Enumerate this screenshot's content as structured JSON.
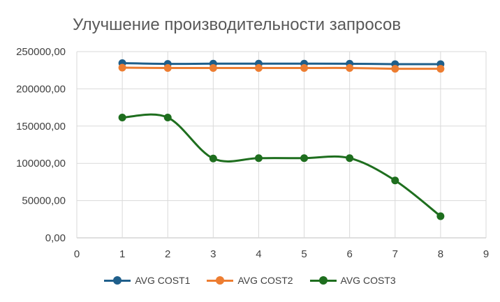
{
  "chart_data": {
    "type": "line",
    "title": "Улучшение производительности запросов",
    "xlabel": "",
    "ylabel": "",
    "xlim": [
      0,
      9
    ],
    "ylim": [
      0,
      250000
    ],
    "x_ticks": [
      "0",
      "1",
      "2",
      "3",
      "4",
      "5",
      "6",
      "7",
      "8",
      "9"
    ],
    "y_ticks": [
      "0,00",
      "50000,00",
      "100000,00",
      "150000,00",
      "200000,00",
      "250000,00"
    ],
    "grid": true,
    "legend_position": "bottom",
    "x": [
      1,
      2,
      3,
      4,
      5,
      6,
      7,
      8
    ],
    "series": [
      {
        "name": "AVG COST1",
        "color": "#1f5f8b",
        "values": [
          234500,
          233500,
          233800,
          233800,
          233800,
          233700,
          233200,
          233200
        ]
      },
      {
        "name": "AVG COST2",
        "color": "#ed7d31",
        "values": [
          228500,
          228000,
          228000,
          228000,
          228000,
          228000,
          227000,
          227000
        ]
      },
      {
        "name": "AVG COST3",
        "color": "#1e6e1e",
        "values": [
          161500,
          161500,
          106500,
          107000,
          107000,
          107000,
          77000,
          29000
        ]
      }
    ]
  }
}
